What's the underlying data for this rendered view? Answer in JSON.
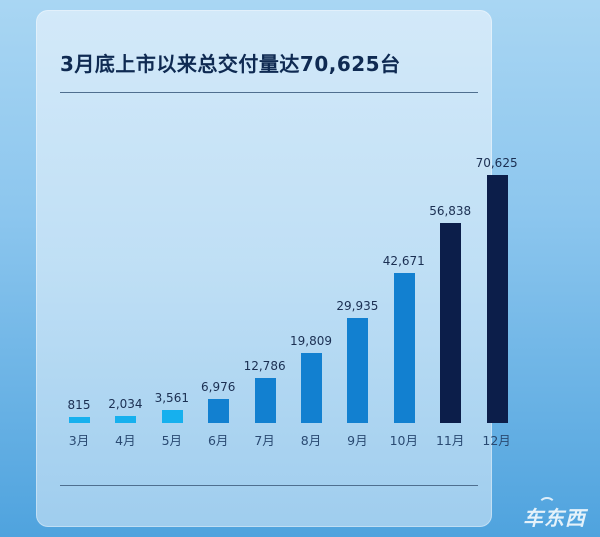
{
  "title": "3月底上市以来总交付量达70,625台",
  "watermark": "车东西",
  "colors": {
    "light": "#16b0ee",
    "mid": "#1280d0",
    "dark": "#0c1e4a"
  },
  "chart_data": {
    "type": "bar",
    "title": "3月底上市以来总交付量达70,625台",
    "xlabel": "",
    "ylabel": "",
    "categories": [
      "3月",
      "4月",
      "5月",
      "6月",
      "7月",
      "8月",
      "9月",
      "10月",
      "11月",
      "12月"
    ],
    "values": [
      815,
      2034,
      3561,
      6976,
      12786,
      19809,
      29935,
      42671,
      56838,
      70625
    ],
    "value_labels": [
      "815",
      "2,034",
      "3,561",
      "6,976",
      "12,786",
      "19,809",
      "29,935",
      "42,671",
      "56,838",
      "70,625"
    ],
    "bar_colors": [
      "#16b0ee",
      "#16b0ee",
      "#16b0ee",
      "#1280d0",
      "#1280d0",
      "#1280d0",
      "#1280d0",
      "#1280d0",
      "#0c1e4a",
      "#0c1e4a"
    ],
    "ylim": [
      0,
      75000
    ],
    "grid": false,
    "legend": "none"
  }
}
